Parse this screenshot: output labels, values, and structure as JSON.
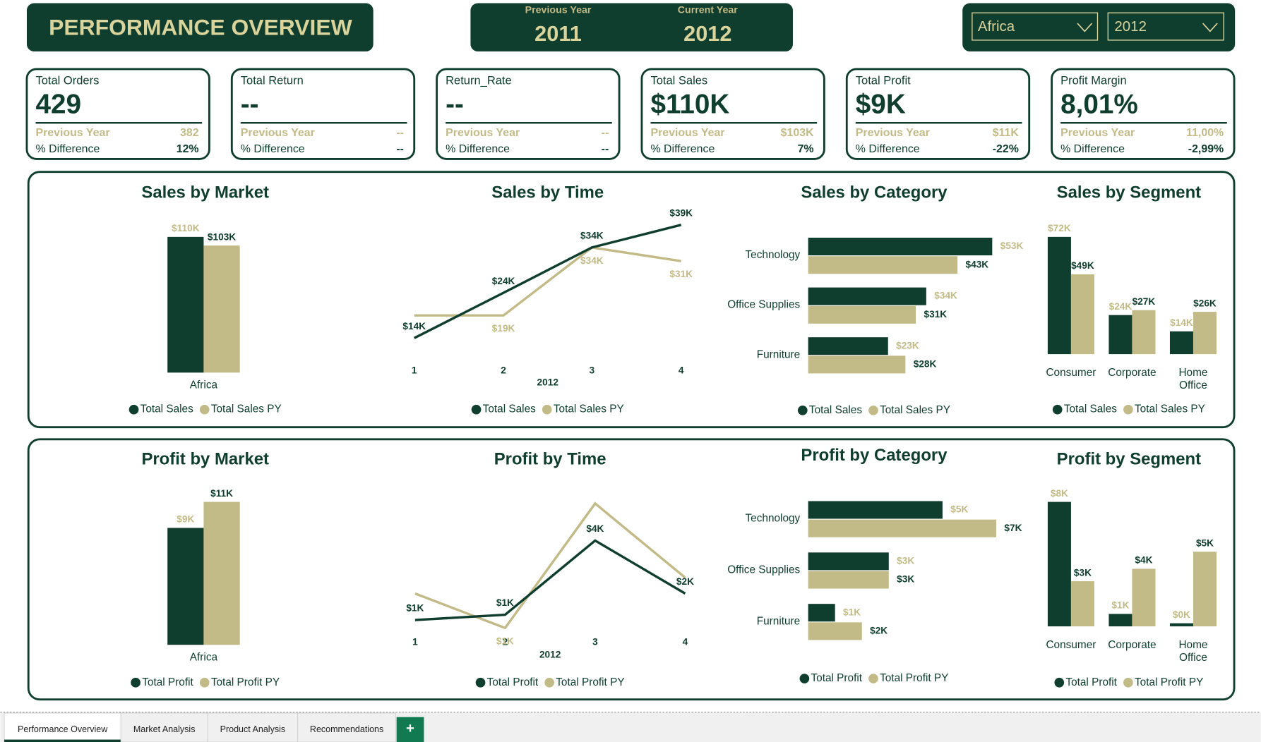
{
  "header": {
    "title": "PERFORMANCE OVERVIEW",
    "previous_year_label": "Previous Year",
    "previous_year": "2011",
    "current_year_label": "Current Year",
    "current_year": "2012"
  },
  "filters": {
    "market": "Africa",
    "year": "2012"
  },
  "kpis": [
    {
      "label": "Total Orders",
      "value": "429",
      "previous_label": "Previous Year",
      "previous": "382",
      "difference_label": "% Difference",
      "difference": "12%"
    },
    {
      "label": "Total Return",
      "value": "--",
      "previous_label": "Previous Year",
      "previous": "--",
      "difference_label": "% Difference",
      "difference": "--"
    },
    {
      "label": "Return_Rate",
      "value": "--",
      "previous_label": "Previous Year",
      "previous": "--",
      "difference_label": "% Difference",
      "difference": "--"
    },
    {
      "label": "Total Sales",
      "value": "$110K",
      "previous_label": "Previous Year",
      "previous": "$103K",
      "difference_label": "% Difference",
      "difference": "7%"
    },
    {
      "label": "Total Profit",
      "value": "$9K",
      "previous_label": "Previous Year",
      "previous": "$11K",
      "difference_label": "% Difference",
      "difference": "-22%"
    },
    {
      "label": "Profit Margin",
      "value": "8,01%",
      "previous_label": "Previous Year",
      "previous": "11,00%",
      "difference_label": "% Difference",
      "difference": "-2,99%"
    }
  ],
  "chart_data": [
    {
      "type": "bar",
      "title": "Sales by Market",
      "categories": [
        "Africa"
      ],
      "series": [
        {
          "name": "Total Sales",
          "color": "#0f3d2e",
          "values": [
            110000
          ],
          "value_labels": [
            "$110K"
          ]
        },
        {
          "name": "Total Sales PY",
          "color": "#c2bb87",
          "values": [
            103000
          ],
          "value_labels": [
            "$103K"
          ]
        }
      ]
    },
    {
      "type": "line",
      "title": "Sales by Time",
      "categories": [
        "1",
        "2",
        "3",
        "4"
      ],
      "xlabel": "2012",
      "series": [
        {
          "name": "Total Sales",
          "color": "#0f3d2e",
          "values": [
            14000,
            24000,
            34000,
            39000
          ],
          "value_labels": [
            "$14K",
            "$24K",
            "$34K",
            "$39K"
          ]
        },
        {
          "name": "Total Sales PY",
          "color": "#c2bb87",
          "values": [
            19000,
            19000,
            34000,
            31000
          ],
          "value_labels": [
            null,
            "$19K",
            "$34K",
            "$31K"
          ]
        }
      ]
    },
    {
      "type": "hbar",
      "title": "Sales by Category",
      "categories": [
        "Technology",
        "Office Supplies",
        "Furniture"
      ],
      "series": [
        {
          "name": "Total Sales",
          "color": "#0f3d2e",
          "values": [
            53000,
            34000,
            23000
          ],
          "value_labels": [
            "$53K",
            "$34K",
            "$23K"
          ]
        },
        {
          "name": "Total Sales PY",
          "color": "#c2bb87",
          "values": [
            43000,
            31000,
            28000
          ],
          "value_labels": [
            "$43K",
            "$31K",
            "$28K"
          ]
        }
      ]
    },
    {
      "type": "bar",
      "title": "Sales by Segment",
      "categories": [
        "Consumer",
        "Corporate",
        "Home Office"
      ],
      "series": [
        {
          "name": "Total Sales",
          "color": "#0f3d2e",
          "values": [
            72000,
            24000,
            14000
          ],
          "value_labels": [
            "$72K",
            "$24K",
            "$14K"
          ]
        },
        {
          "name": "Total Sales PY",
          "color": "#c2bb87",
          "values": [
            49000,
            27000,
            26000
          ],
          "value_labels": [
            "$49K",
            "$27K",
            "$26K"
          ]
        }
      ]
    },
    {
      "type": "bar",
      "title": "Profit by Market",
      "categories": [
        "Africa"
      ],
      "series": [
        {
          "name": "Total Profit",
          "color": "#0f3d2e",
          "values": [
            9000
          ],
          "value_labels": [
            "$9K"
          ]
        },
        {
          "name": "Total Profit PY",
          "color": "#c2bb87",
          "values": [
            11000
          ],
          "value_labels": [
            "$11K"
          ]
        }
      ]
    },
    {
      "type": "line",
      "title": "Profit by Time",
      "categories": [
        "1",
        "2",
        "3",
        "4"
      ],
      "xlabel": "2012",
      "series": [
        {
          "name": "Total Profit",
          "color": "#0f3d2e",
          "values": [
            1000,
            1200,
            4000,
            2000
          ],
          "value_labels": [
            "$1K",
            "$1K",
            "$4K",
            "$2K"
          ]
        },
        {
          "name": "Total Profit PY",
          "color": "#c2bb87",
          "values": [
            2000,
            700,
            5400,
            2600
          ],
          "value_labels": [
            null,
            "$1K",
            null,
            null
          ]
        }
      ]
    },
    {
      "type": "hbar",
      "title": "Profit by Category",
      "categories": [
        "Technology",
        "Office Supplies",
        "Furniture"
      ],
      "series": [
        {
          "name": "Total Profit",
          "color": "#0f3d2e",
          "values": [
            5000,
            3000,
            1000
          ],
          "value_labels": [
            "$5K",
            "$3K",
            "$1K"
          ]
        },
        {
          "name": "Total Profit PY",
          "color": "#c2bb87",
          "values": [
            7000,
            3000,
            2000
          ],
          "value_labels": [
            "$7K",
            "$3K",
            "$2K"
          ]
        }
      ]
    },
    {
      "type": "bar",
      "title": "Profit by Segment",
      "categories": [
        "Consumer",
        "Corporate",
        "Home Office"
      ],
      "series": [
        {
          "name": "Total Profit",
          "color": "#0f3d2e",
          "values": [
            8000,
            800,
            200
          ],
          "value_labels": [
            "$8K",
            "$1K",
            "$0K"
          ]
        },
        {
          "name": "Total Profit PY",
          "color": "#c2bb87",
          "values": [
            2900,
            3700,
            4800
          ],
          "value_labels": [
            "$3K",
            "$4K",
            "$5K"
          ]
        }
      ]
    }
  ],
  "tabs": [
    "Performance Overview",
    "Market Analysis",
    "Product Analysis",
    "Recommendations"
  ],
  "add_tab": "+"
}
